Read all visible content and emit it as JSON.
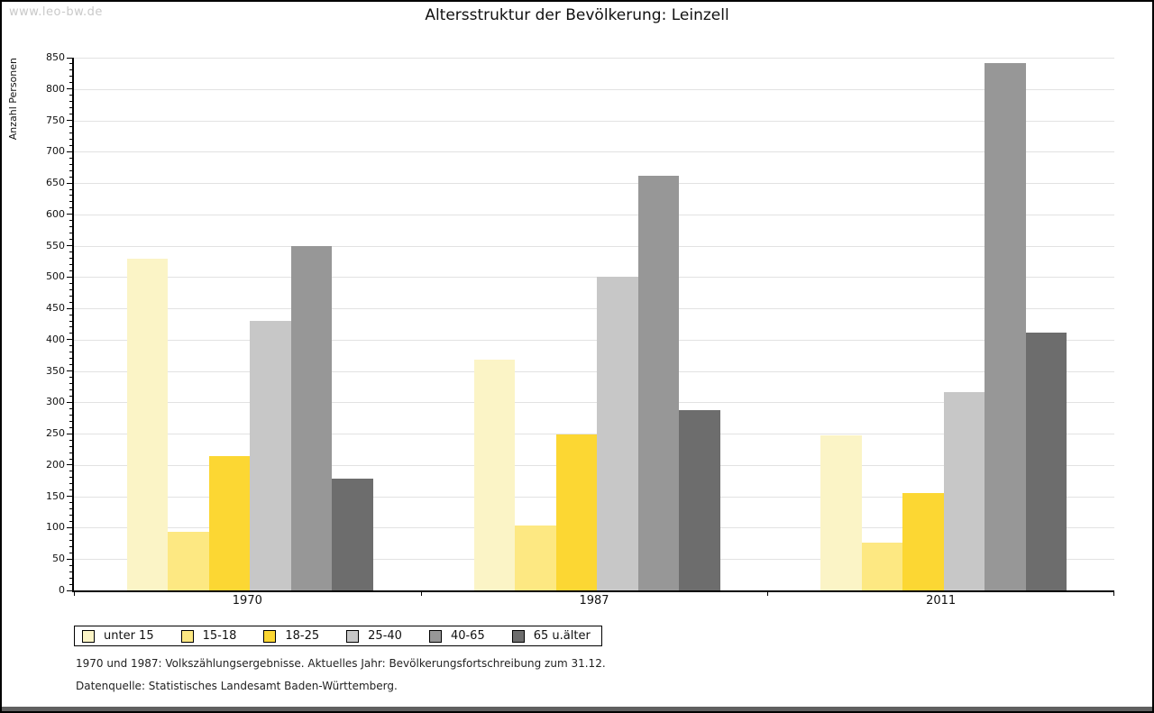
{
  "watermark": "www.leo-bw.de",
  "title": "Altersstruktur der Bevölkerung: Leinzell",
  "y_axis_title": "Anzahl Personen",
  "chart_data": {
    "type": "bar",
    "title": "Altersstruktur der Bevölkerung: Leinzell",
    "ylabel": "Anzahl Personen",
    "xlabel": "",
    "categories": [
      "1970",
      "1987",
      "2011"
    ],
    "series": [
      {
        "name": "unter 15",
        "color": "#FBF4C6",
        "values": [
          529,
          368,
          247
        ]
      },
      {
        "name": "15-18",
        "color": "#FDE882",
        "values": [
          94,
          103,
          76
        ]
      },
      {
        "name": "18-25",
        "color": "#FCD733",
        "values": [
          215,
          249,
          156
        ]
      },
      {
        "name": "25-40",
        "color": "#C7C7C7",
        "values": [
          430,
          500,
          317
        ]
      },
      {
        "name": "40-65",
        "color": "#979797",
        "values": [
          550,
          662,
          842
        ]
      },
      {
        "name": "65 u.älter",
        "color": "#6D6D6D",
        "values": [
          178,
          288,
          412
        ]
      }
    ],
    "ylim": [
      0,
      850
    ],
    "y_major_step": 50,
    "y_minor_step": 10,
    "grid": true,
    "legend_position": "bottom"
  },
  "footnotes": {
    "line1": "1970 und 1987: Volkszählungsergebnisse. Aktuelles Jahr: Bevölkerungsfortschreibung zum 31.12.",
    "line2": "Datenquelle: Statistisches Landesamt Baden-Württemberg."
  },
  "colors": {
    "axis": "#000000",
    "gridline": "#e2e2e2",
    "watermark": "#c9c9c9",
    "bottom_bar": "#606060"
  }
}
